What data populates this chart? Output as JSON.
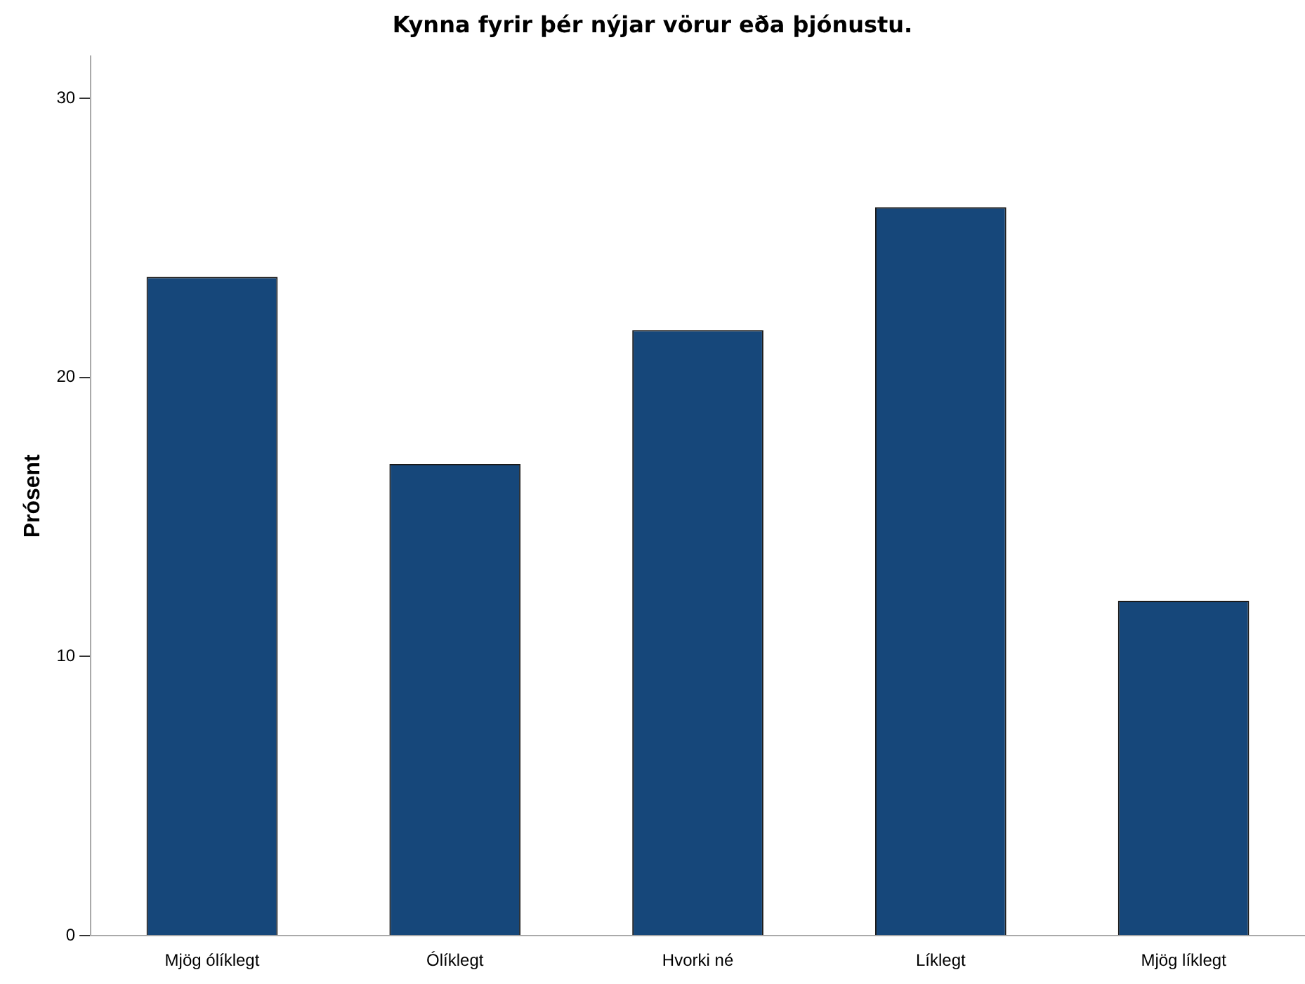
{
  "chart_data": {
    "type": "bar",
    "title": "Kynna fyrir þér nýjar vörur eða þjónustu.",
    "ylabel": "Prósent",
    "categories": [
      "Mjög ólíklegt",
      "Ólíklegt",
      "Hvorki né",
      "Líklegt",
      "Mjög líklegt"
    ],
    "values": [
      23.6,
      16.9,
      21.7,
      26.1,
      12.0
    ],
    "color": "#16477a",
    "ylim": [
      0,
      31.5
    ],
    "yticks": [
      0,
      10,
      20,
      30
    ],
    "grid": false,
    "legend": false
  }
}
